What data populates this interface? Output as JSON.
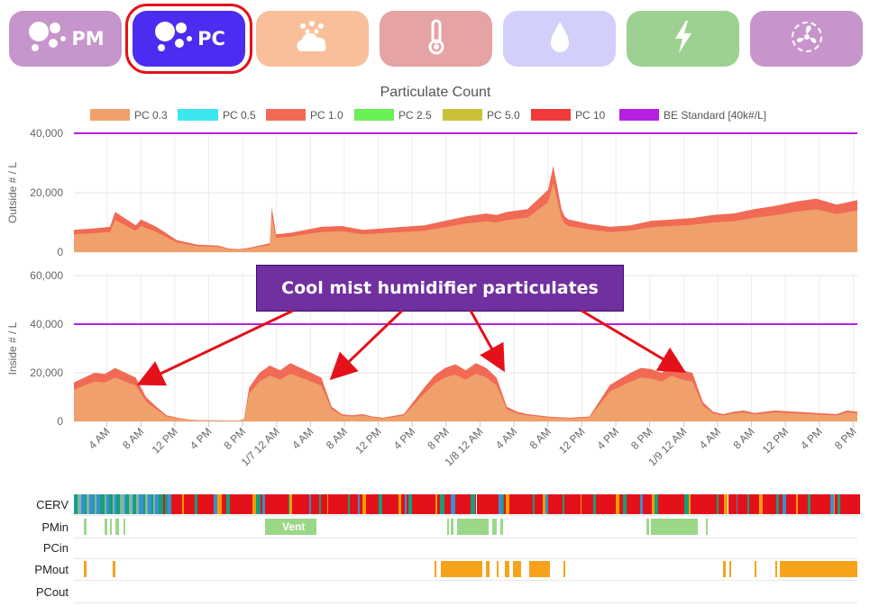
{
  "tabs": [
    {
      "id": "pm",
      "label": "PM",
      "icon": "particles-icon",
      "color": "#c595cb",
      "active": false
    },
    {
      "id": "pc",
      "label": "PC",
      "icon": "particles-icon",
      "color": "#4b2cf0",
      "active": true
    },
    {
      "id": "aqi",
      "label": "",
      "icon": "dust-cloud-icon",
      "color": "#f9bf9a",
      "active": false
    },
    {
      "id": "temp",
      "label": "",
      "icon": "thermometer-icon",
      "color": "#e6a3a5",
      "active": false
    },
    {
      "id": "humidity",
      "label": "",
      "icon": "water-drop-icon",
      "color": "#d2d0fb",
      "active": false
    },
    {
      "id": "power",
      "label": "",
      "icon": "lightning-icon",
      "color": "#9dd191",
      "active": false
    },
    {
      "id": "fan",
      "label": "",
      "icon": "fan-icon",
      "color": "#c795cc",
      "active": false
    }
  ],
  "chart_data": {
    "type": "area",
    "title": "Particulate Count",
    "legend": [
      {
        "name": "PC 0.3",
        "color": "#f0a06a"
      },
      {
        "name": "PC 0.5",
        "color": "#3ce8ee"
      },
      {
        "name": "PC 1.0",
        "color": "#f06a55"
      },
      {
        "name": "PC 2.5",
        "color": "#6af055"
      },
      {
        "name": "PC 5.0",
        "color": "#c8c23a"
      },
      {
        "name": "PC 10",
        "color": "#ee3a3a"
      },
      {
        "name": "BE Standard [40k#/L]",
        "color": "#b620e0"
      }
    ],
    "legend_position": "top",
    "grid": true,
    "x_tick_labels": [
      "4 AM",
      "8 AM",
      "12 PM",
      "4 PM",
      "8 PM",
      "1/7 12 AM",
      "4 AM",
      "8 AM",
      "12 PM",
      "4 PM",
      "8 PM",
      "1/8 12 AM",
      "4 AM",
      "8 AM",
      "12 PM",
      "4 PM",
      "8 PM",
      "1/9 12 AM",
      "4 AM",
      "8 AM",
      "12 PM",
      "4 PM",
      "8 PM"
    ],
    "x_range_hours": [
      0,
      76
    ],
    "x_first_tick_hour": 3.2,
    "panels": [
      {
        "ylabel": "Outside # / L",
        "ylim": [
          0,
          40000
        ],
        "yticks": [
          0,
          20000,
          40000
        ],
        "ytick_labels": [
          "0",
          "20,000",
          "40,000"
        ],
        "be_standard": 40000,
        "outer_series": "PC 1.0",
        "inner_series": "PC 0.3",
        "x": [
          0,
          2,
          3.5,
          4,
          6,
          6.5,
          8,
          10,
          12,
          14,
          15,
          16,
          17,
          19,
          19.2,
          19.6,
          21,
          24,
          26,
          28,
          30,
          32,
          34,
          36,
          38,
          40,
          41,
          42,
          44,
          46,
          46.5,
          47,
          47.3,
          47.6,
          48,
          50,
          52,
          54,
          56,
          58,
          60,
          62,
          64,
          66,
          68,
          70,
          72,
          74,
          76
        ],
        "values": [
          7500,
          8000,
          8500,
          13500,
          9000,
          11000,
          8500,
          4000,
          2500,
          2200,
          1200,
          1000,
          1500,
          3000,
          15000,
          6000,
          6500,
          8500,
          8800,
          7500,
          8000,
          8500,
          9000,
          10500,
          12000,
          13000,
          12500,
          13500,
          14500,
          21000,
          29000,
          20000,
          14500,
          12000,
          11000,
          9500,
          8500,
          9000,
          10500,
          11000,
          11500,
          12500,
          13000,
          14500,
          15500,
          17000,
          18000,
          16000,
          17500
        ],
        "inner_ratio": 0.8
      },
      {
        "ylabel": "Inside # / L",
        "ylim": [
          0,
          60000
        ],
        "yticks": [
          0,
          20000,
          40000,
          60000
        ],
        "ytick_labels": [
          "0",
          "20,000",
          "40,000",
          "60,000"
        ],
        "be_standard": 40000,
        "outer_series": "PC 1.0",
        "inner_series": "PC 0.3",
        "x": [
          0,
          1,
          2,
          3,
          4,
          5,
          6,
          7,
          8,
          9,
          10,
          11,
          12,
          14,
          16,
          16.5,
          17,
          18,
          19,
          20,
          21,
          22,
          23,
          24,
          25,
          26,
          27,
          28,
          29,
          30,
          32,
          34,
          35,
          36,
          37,
          38,
          39,
          40,
          41,
          42,
          43,
          44,
          45,
          46,
          48,
          50,
          52,
          54,
          55,
          56,
          57,
          58,
          59,
          60,
          61,
          62,
          63,
          64,
          65,
          66,
          68,
          70,
          72,
          74,
          75,
          76
        ],
        "values": [
          16000,
          18000,
          20000,
          19500,
          22000,
          20000,
          18000,
          10000,
          6000,
          2500,
          1500,
          800,
          500,
          400,
          300,
          1000,
          14000,
          20000,
          23000,
          21000,
          24000,
          22000,
          20000,
          18000,
          6000,
          3000,
          2500,
          3000,
          2000,
          1500,
          3000,
          14000,
          19000,
          22000,
          23500,
          21000,
          24000,
          22000,
          18000,
          6000,
          4000,
          3000,
          2500,
          2000,
          1500,
          2000,
          15000,
          20000,
          22000,
          21500,
          20000,
          23000,
          21000,
          20000,
          8000,
          4000,
          3000,
          4000,
          4500,
          3500,
          4500,
          4000,
          3500,
          3000,
          4500,
          4000
        ],
        "inner_ratio": 0.82
      }
    ],
    "annotation": {
      "text": "Cool mist humidifier particulates",
      "color": "#7030a0",
      "arrow_color": "#e4111b"
    },
    "status_strips": [
      {
        "name": "CERV",
        "style": "multicolor",
        "colors": [
          "#e4111b",
          "#13a07a",
          "#3a8fd0",
          "#f59c00"
        ]
      },
      {
        "name": "PMin",
        "style": "segments",
        "color": "#9ad888",
        "label": "Vent",
        "segments": [
          [
            1,
            1.2
          ],
          [
            3,
            3.2
          ],
          [
            3.5,
            3.7
          ],
          [
            4,
            4.4
          ],
          [
            4.8,
            5.0
          ],
          [
            18.5,
            23.5
          ],
          [
            36.2,
            36.4
          ],
          [
            36.6,
            36.8
          ],
          [
            37.2,
            40.2
          ],
          [
            40.6,
            41
          ],
          [
            41.4,
            41.6
          ],
          [
            55.5,
            55.8
          ],
          [
            56,
            60.5
          ],
          [
            61.3,
            61.5
          ]
        ]
      },
      {
        "name": "PCin",
        "style": "segments",
        "color": "#9ad888",
        "segments": []
      },
      {
        "name": "PMout",
        "style": "segments",
        "color": "#f8a21b",
        "segments": [
          [
            1,
            1.2
          ],
          [
            3.8,
            4.0
          ],
          [
            35,
            35.2
          ],
          [
            35.6,
            39.6
          ],
          [
            40,
            40.3
          ],
          [
            41,
            41.2
          ],
          [
            41.8,
            42.2
          ],
          [
            42.6,
            43.4
          ],
          [
            44.2,
            46.2
          ],
          [
            47.5,
            47.7
          ],
          [
            63,
            63.2
          ],
          [
            63.6,
            63.8
          ],
          [
            66,
            66.2
          ],
          [
            68,
            68.2
          ],
          [
            68.5,
            76
          ]
        ]
      },
      {
        "name": "PCout",
        "style": "segments",
        "color": "#f8a21b",
        "segments": []
      }
    ]
  }
}
